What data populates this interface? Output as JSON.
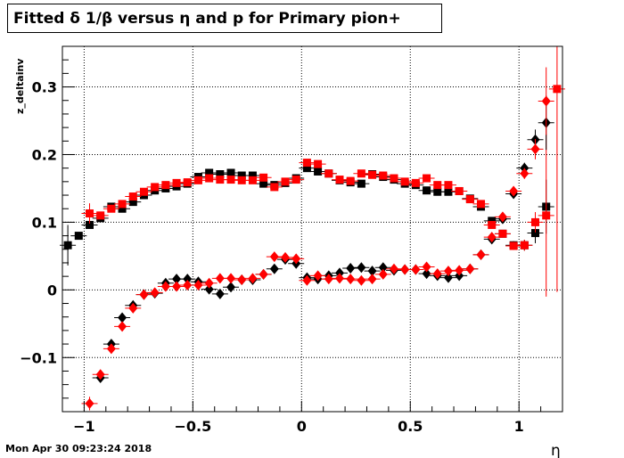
{
  "title": "Fitted δ 1/β versus η and p for Primary pion+",
  "timestamp": "Mon Apr 30 09:23:24 2018",
  "chart_data": {
    "type": "scatter",
    "title": "Fitted δ 1/β versus η and p for Primary pion+",
    "xlabel": "η",
    "ylabel": "z_deltainv",
    "xlim": [
      -1.1,
      1.2
    ],
    "ylim": [
      -0.18,
      0.36
    ],
    "grid": true,
    "x_ticks": [
      -1,
      -0.5,
      0,
      0.5,
      1
    ],
    "x_tick_labels": [
      "−1",
      "−0.5",
      "0",
      "0.5",
      "1"
    ],
    "y_ticks": [
      -0.1,
      0,
      0.1,
      0.2,
      0.3
    ],
    "y_tick_labels": [
      "−0.1",
      "0",
      "0.1",
      "0.2",
      "0.3"
    ],
    "colors": {
      "black": "#000000",
      "red": "#ff0000"
    },
    "series": [
      {
        "color": "black",
        "marker": "square",
        "points": [
          [
            -1.075,
            0.066,
            0.03
          ],
          [
            -1.025,
            0.08,
            0.005
          ],
          [
            -0.975,
            0.096,
            0.005
          ],
          [
            -0.925,
            0.106,
            0.004
          ],
          [
            -0.875,
            0.123,
            0.003
          ],
          [
            -0.825,
            0.12,
            0.003
          ],
          [
            -0.775,
            0.13,
            0.003
          ],
          [
            -0.725,
            0.14,
            0.003
          ],
          [
            -0.675,
            0.147,
            0.003
          ],
          [
            -0.625,
            0.15,
            0.003
          ],
          [
            -0.575,
            0.153,
            0.003
          ],
          [
            -0.525,
            0.157,
            0.003
          ],
          [
            -0.475,
            0.167,
            0.003
          ],
          [
            -0.425,
            0.173,
            0.003
          ],
          [
            -0.375,
            0.171,
            0.003
          ],
          [
            -0.325,
            0.173,
            0.003
          ],
          [
            -0.275,
            0.169,
            0.003
          ],
          [
            -0.225,
            0.169,
            0.003
          ],
          [
            -0.175,
            0.157,
            0.003
          ],
          [
            -0.125,
            0.155,
            0.003
          ],
          [
            -0.075,
            0.158,
            0.003
          ],
          [
            -0.025,
            0.165,
            0.003
          ],
          [
            0.025,
            0.18,
            0.003
          ],
          [
            0.075,
            0.175,
            0.003
          ],
          [
            0.125,
            0.172,
            0.003
          ],
          [
            0.175,
            0.162,
            0.003
          ],
          [
            0.225,
            0.159,
            0.003
          ],
          [
            0.275,
            0.157,
            0.003
          ],
          [
            0.325,
            0.171,
            0.003
          ],
          [
            0.375,
            0.167,
            0.003
          ],
          [
            0.425,
            0.163,
            0.003
          ],
          [
            0.475,
            0.157,
            0.003
          ],
          [
            0.525,
            0.155,
            0.003
          ],
          [
            0.575,
            0.147,
            0.003
          ],
          [
            0.625,
            0.145,
            0.003
          ],
          [
            0.675,
            0.145,
            0.003
          ],
          [
            0.725,
            0.146,
            0.003
          ],
          [
            0.775,
            0.135,
            0.003
          ],
          [
            0.825,
            0.123,
            0.003
          ],
          [
            0.875,
            0.102,
            0.004
          ],
          [
            0.925,
            0.083,
            0.005
          ],
          [
            0.975,
            0.066,
            0.006
          ],
          [
            1.025,
            0.066,
            0.008
          ],
          [
            1.075,
            0.084,
            0.015
          ],
          [
            1.125,
            0.123,
            0.04
          ]
        ]
      },
      {
        "color": "red",
        "marker": "square",
        "points": [
          [
            -0.975,
            0.113,
            0.015
          ],
          [
            -0.925,
            0.11,
            0.005
          ],
          [
            -0.875,
            0.12,
            0.004
          ],
          [
            -0.825,
            0.127,
            0.003
          ],
          [
            -0.775,
            0.138,
            0.003
          ],
          [
            -0.725,
            0.145,
            0.003
          ],
          [
            -0.675,
            0.152,
            0.003
          ],
          [
            -0.625,
            0.155,
            0.003
          ],
          [
            -0.575,
            0.158,
            0.003
          ],
          [
            -0.525,
            0.159,
            0.003
          ],
          [
            -0.475,
            0.162,
            0.003
          ],
          [
            -0.425,
            0.165,
            0.003
          ],
          [
            -0.375,
            0.163,
            0.003
          ],
          [
            -0.325,
            0.163,
            0.003
          ],
          [
            -0.275,
            0.162,
            0.003
          ],
          [
            -0.225,
            0.162,
            0.003
          ],
          [
            -0.175,
            0.166,
            0.003
          ],
          [
            -0.125,
            0.152,
            0.003
          ],
          [
            -0.075,
            0.16,
            0.003
          ],
          [
            -0.025,
            0.163,
            0.003
          ],
          [
            0.025,
            0.188,
            0.003
          ],
          [
            0.075,
            0.186,
            0.003
          ],
          [
            0.125,
            0.172,
            0.003
          ],
          [
            0.175,
            0.163,
            0.003
          ],
          [
            0.225,
            0.161,
            0.003
          ],
          [
            0.275,
            0.172,
            0.003
          ],
          [
            0.325,
            0.17,
            0.003
          ],
          [
            0.375,
            0.169,
            0.003
          ],
          [
            0.425,
            0.165,
            0.003
          ],
          [
            0.475,
            0.16,
            0.003
          ],
          [
            0.525,
            0.158,
            0.003
          ],
          [
            0.575,
            0.165,
            0.003
          ],
          [
            0.625,
            0.155,
            0.003
          ],
          [
            0.675,
            0.155,
            0.003
          ],
          [
            0.725,
            0.146,
            0.003
          ],
          [
            0.775,
            0.134,
            0.003
          ],
          [
            0.825,
            0.127,
            0.003
          ],
          [
            0.875,
            0.096,
            0.004
          ],
          [
            0.925,
            0.083,
            0.005
          ],
          [
            0.975,
            0.065,
            0.006
          ],
          [
            1.025,
            0.066,
            0.008
          ],
          [
            1.075,
            0.1,
            0.015
          ],
          [
            1.125,
            0.11,
            0.12
          ],
          [
            1.175,
            0.297,
            0.3
          ]
        ]
      },
      {
        "color": "black",
        "marker": "diamond",
        "points": [
          [
            -0.925,
            -0.13,
            0.005
          ],
          [
            -0.875,
            -0.08,
            0.004
          ],
          [
            -0.825,
            -0.041,
            0.004
          ],
          [
            -0.775,
            -0.023,
            0.003
          ],
          [
            -0.725,
            -0.007,
            0.003
          ],
          [
            -0.675,
            -0.005,
            0.003
          ],
          [
            -0.625,
            0.01,
            0.003
          ],
          [
            -0.575,
            0.016,
            0.003
          ],
          [
            -0.525,
            0.016,
            0.003
          ],
          [
            -0.475,
            0.012,
            0.003
          ],
          [
            -0.425,
            0.001,
            0.003
          ],
          [
            -0.375,
            -0.006,
            0.003
          ],
          [
            -0.325,
            0.004,
            0.003
          ],
          [
            -0.275,
            0.015,
            0.003
          ],
          [
            -0.225,
            0.015,
            0.003
          ],
          [
            -0.175,
            0.023,
            0.003
          ],
          [
            -0.125,
            0.031,
            0.003
          ],
          [
            -0.075,
            0.045,
            0.003
          ],
          [
            -0.025,
            0.039,
            0.003
          ],
          [
            0.025,
            0.018,
            0.003
          ],
          [
            0.075,
            0.016,
            0.003
          ],
          [
            0.125,
            0.021,
            0.003
          ],
          [
            0.175,
            0.025,
            0.003
          ],
          [
            0.225,
            0.032,
            0.003
          ],
          [
            0.275,
            0.033,
            0.003
          ],
          [
            0.325,
            0.028,
            0.003
          ],
          [
            0.375,
            0.033,
            0.003
          ],
          [
            0.425,
            0.029,
            0.003
          ],
          [
            0.475,
            0.03,
            0.003
          ],
          [
            0.525,
            0.03,
            0.003
          ],
          [
            0.575,
            0.024,
            0.003
          ],
          [
            0.625,
            0.021,
            0.003
          ],
          [
            0.675,
            0.018,
            0.003
          ],
          [
            0.725,
            0.021,
            0.003
          ],
          [
            0.775,
            0.031,
            0.003
          ],
          [
            0.825,
            0.052,
            0.003
          ],
          [
            0.875,
            0.075,
            0.004
          ],
          [
            0.925,
            0.105,
            0.005
          ],
          [
            0.975,
            0.142,
            0.006
          ],
          [
            1.025,
            0.18,
            0.008
          ],
          [
            1.075,
            0.222,
            0.015
          ],
          [
            1.125,
            0.247,
            0.04
          ]
        ]
      },
      {
        "color": "red",
        "marker": "diamond",
        "points": [
          [
            -0.975,
            -0.168,
            0.01
          ],
          [
            -0.925,
            -0.125,
            0.005
          ],
          [
            -0.875,
            -0.087,
            0.004
          ],
          [
            -0.825,
            -0.054,
            0.004
          ],
          [
            -0.775,
            -0.027,
            0.003
          ],
          [
            -0.725,
            -0.007,
            0.003
          ],
          [
            -0.675,
            -0.004,
            0.003
          ],
          [
            -0.625,
            0.005,
            0.003
          ],
          [
            -0.575,
            0.005,
            0.003
          ],
          [
            -0.525,
            0.007,
            0.003
          ],
          [
            -0.475,
            0.007,
            0.003
          ],
          [
            -0.425,
            0.01,
            0.003
          ],
          [
            -0.375,
            0.017,
            0.003
          ],
          [
            -0.325,
            0.017,
            0.003
          ],
          [
            -0.275,
            0.015,
            0.003
          ],
          [
            -0.225,
            0.017,
            0.003
          ],
          [
            -0.175,
            0.023,
            0.003
          ],
          [
            -0.125,
            0.049,
            0.003
          ],
          [
            -0.075,
            0.048,
            0.003
          ],
          [
            -0.025,
            0.046,
            0.003
          ],
          [
            0.025,
            0.014,
            0.003
          ],
          [
            0.075,
            0.021,
            0.003
          ],
          [
            0.125,
            0.016,
            0.003
          ],
          [
            0.175,
            0.017,
            0.003
          ],
          [
            0.225,
            0.016,
            0.003
          ],
          [
            0.275,
            0.014,
            0.003
          ],
          [
            0.325,
            0.016,
            0.003
          ],
          [
            0.375,
            0.023,
            0.003
          ],
          [
            0.425,
            0.031,
            0.003
          ],
          [
            0.475,
            0.03,
            0.003
          ],
          [
            0.525,
            0.03,
            0.003
          ],
          [
            0.575,
            0.034,
            0.003
          ],
          [
            0.625,
            0.024,
            0.003
          ],
          [
            0.675,
            0.028,
            0.003
          ],
          [
            0.725,
            0.029,
            0.003
          ],
          [
            0.775,
            0.031,
            0.003
          ],
          [
            0.825,
            0.052,
            0.003
          ],
          [
            0.875,
            0.078,
            0.004
          ],
          [
            0.925,
            0.108,
            0.005
          ],
          [
            0.975,
            0.146,
            0.006
          ],
          [
            1.025,
            0.172,
            0.008
          ],
          [
            1.075,
            0.208,
            0.015
          ],
          [
            1.125,
            0.279,
            0.05
          ]
        ]
      }
    ]
  }
}
